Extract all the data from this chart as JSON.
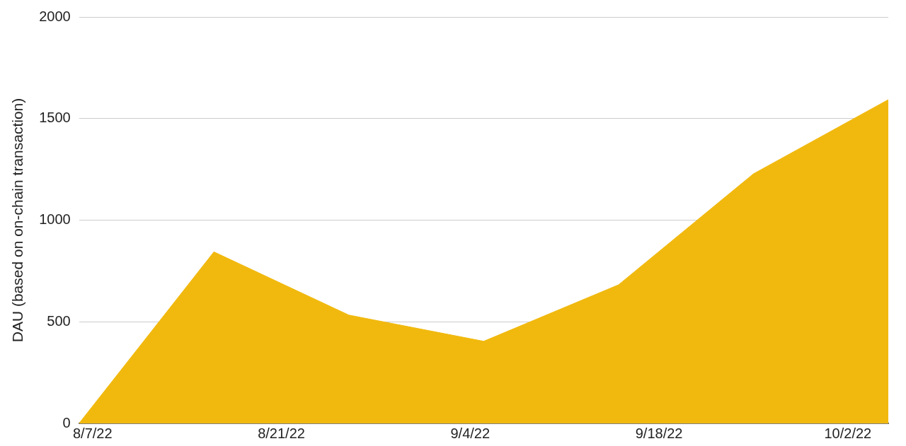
{
  "chart_data": {
    "type": "area",
    "ylabel": "DAU (based on on-chain transaction)",
    "x": [
      "2022-08-06",
      "2022-08-16",
      "2022-08-26",
      "2022-09-05",
      "2022-09-15",
      "2022-09-25",
      "2022-10-05"
    ],
    "series": [
      {
        "color": "#f1b90e",
        "values": [
          0,
          844,
          533,
          404,
          682,
          1228,
          1593
        ]
      }
    ],
    "xlim": [
      "2022-08-06",
      "2022-10-05"
    ],
    "xticks": [
      {
        "value": "2022-08-07",
        "label": "8/7/22"
      },
      {
        "value": "2022-08-21",
        "label": "8/21/22"
      },
      {
        "value": "2022-09-04",
        "label": "9/4/22"
      },
      {
        "value": "2022-09-18",
        "label": "9/18/22"
      },
      {
        "value": "2022-10-02",
        "label": "10/2/22"
      }
    ],
    "ylim": [
      0,
      2000
    ],
    "yticks": [
      0,
      500,
      1000,
      1500,
      2000
    ],
    "grid": "y",
    "legend": false
  }
}
